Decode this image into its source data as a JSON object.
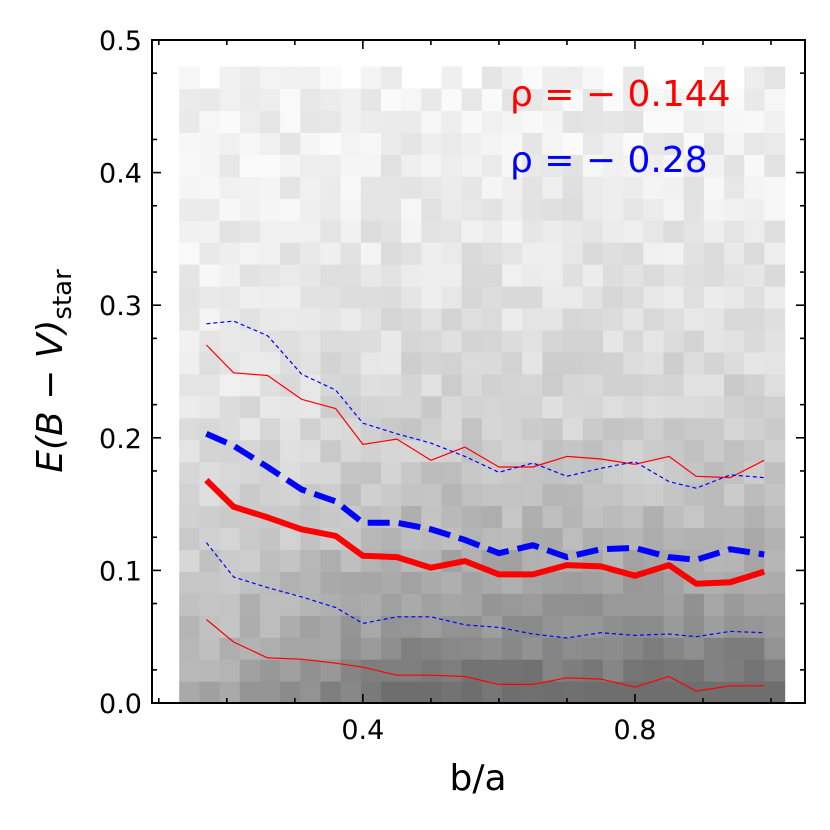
{
  "chart_data": {
    "type": "line",
    "background": "2D density histogram (grayscale) of E(B-V)_star vs b/a",
    "xlabel": "b/a",
    "ylabel_main": "E(B − V)",
    "ylabel_sub": "star",
    "xlim": [
      0.09,
      1.05
    ],
    "ylim": [
      0.0,
      0.5
    ],
    "x_ticks": [
      0.4,
      0.8
    ],
    "x_tick_labels": [
      "0.4",
      "0.8"
    ],
    "y_ticks": [
      0.0,
      0.1,
      0.2,
      0.3,
      0.4,
      0.5
    ],
    "y_tick_labels": [
      "0.0",
      "0.1",
      "0.2",
      "0.3",
      "0.4",
      "0.5"
    ],
    "x": [
      0.17,
      0.21,
      0.26,
      0.31,
      0.36,
      0.4,
      0.45,
      0.5,
      0.55,
      0.6,
      0.65,
      0.7,
      0.75,
      0.8,
      0.85,
      0.89,
      0.94,
      0.99
    ],
    "series": [
      {
        "name": "red median",
        "color": "#ff0000",
        "style": "solid",
        "width": 6,
        "values": [
          0.168,
          0.148,
          0.14,
          0.131,
          0.126,
          0.111,
          0.11,
          0.102,
          0.107,
          0.097,
          0.097,
          0.104,
          0.103,
          0.096,
          0.104,
          0.09,
          0.091,
          0.099
        ]
      },
      {
        "name": "red upper",
        "color": "#ff0000",
        "style": "solid",
        "width": 1.2,
        "values": [
          0.27,
          0.249,
          0.247,
          0.229,
          0.222,
          0.195,
          0.199,
          0.183,
          0.193,
          0.178,
          0.178,
          0.186,
          0.184,
          0.18,
          0.186,
          0.171,
          0.17,
          0.183
        ]
      },
      {
        "name": "red lower",
        "color": "#ff0000",
        "style": "solid",
        "width": 1.2,
        "values": [
          0.063,
          0.046,
          0.034,
          0.033,
          0.03,
          0.027,
          0.021,
          0.021,
          0.02,
          0.014,
          0.014,
          0.019,
          0.018,
          0.012,
          0.02,
          0.009,
          0.013,
          0.013
        ]
      },
      {
        "name": "blue median",
        "color": "#0000ff",
        "style": "dashed",
        "width": 6,
        "values": [
          0.203,
          0.194,
          0.178,
          0.161,
          0.152,
          0.136,
          0.136,
          0.131,
          0.123,
          0.113,
          0.119,
          0.11,
          0.116,
          0.117,
          0.11,
          0.108,
          0.116,
          0.112
        ]
      },
      {
        "name": "blue upper",
        "color": "#0000ff",
        "style": "dashed",
        "width": 1.2,
        "values": [
          0.286,
          0.288,
          0.277,
          0.248,
          0.236,
          0.211,
          0.203,
          0.196,
          0.186,
          0.174,
          0.181,
          0.171,
          0.177,
          0.182,
          0.167,
          0.162,
          0.172,
          0.17
        ]
      },
      {
        "name": "blue lower",
        "color": "#0000ff",
        "style": "dashed",
        "width": 1.2,
        "values": [
          0.121,
          0.095,
          0.087,
          0.08,
          0.072,
          0.06,
          0.065,
          0.065,
          0.059,
          0.057,
          0.052,
          0.049,
          0.053,
          0.051,
          0.052,
          0.05,
          0.054,
          0.053
        ]
      }
    ],
    "annotations": [
      {
        "text": "ρ = − 0.144",
        "color": "#ff0000"
      },
      {
        "text": "ρ = − 0.28",
        "color": "#0000ff"
      }
    ]
  }
}
